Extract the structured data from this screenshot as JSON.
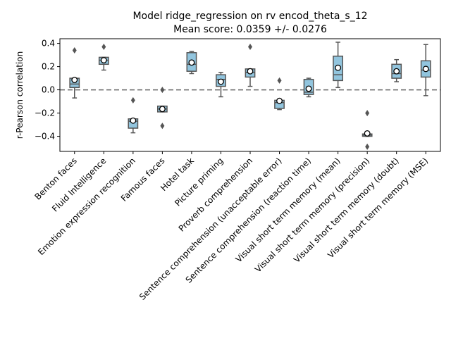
{
  "chart_data": {
    "type": "boxplot",
    "title": "Model ridge_regression on rv encod_theta_s_12",
    "subtitle": "Mean score: 0.0359 +/- 0.0276",
    "xlabel": "",
    "ylabel": "r-Pearson correlation",
    "ylim": [
      -0.53,
      0.44
    ],
    "yticks": [
      0.4,
      0.2,
      0.0,
      -0.2,
      -0.4
    ],
    "ytick_labels": [
      "0.4",
      "0.2",
      "0.0",
      "−0.2",
      "−0.4"
    ],
    "reference_line": 0.0,
    "grid": false,
    "colors": {
      "box_fill": "#92c5de",
      "box_edge": "#555555",
      "reference_line": "#666666"
    },
    "categories": [
      "Benton faces",
      "Fluid Intelligence",
      "Emotion expression recognition",
      "Famous faces",
      "Hotel task",
      "Picture priming",
      "Proverb comprehension",
      "Sentence comprehension (unacceptable error)",
      "Sentence comprehension (reaction time)",
      "Visual short term memory (mean)",
      "Visual short term memory (precision)",
      "Visual short term memory (doubt)",
      "Visual short term memory (MSE)"
    ],
    "boxes": [
      {
        "whislo": -0.07,
        "q1": 0.02,
        "med": 0.05,
        "q3": 0.1,
        "whishi": 0.1,
        "mean": 0.085,
        "fliers": [
          0.34
        ]
      },
      {
        "whislo": 0.17,
        "q1": 0.22,
        "med": 0.255,
        "q3": 0.28,
        "whishi": 0.28,
        "mean": 0.255,
        "fliers": [
          0.37
        ]
      },
      {
        "whislo": -0.37,
        "q1": -0.33,
        "med": -0.27,
        "q3": -0.25,
        "whishi": -0.25,
        "mean": -0.265,
        "fliers": [
          -0.09
        ]
      },
      {
        "whislo": -0.19,
        "q1": -0.19,
        "med": -0.165,
        "q3": -0.14,
        "whishi": -0.14,
        "mean": -0.165,
        "fliers": [
          0.0,
          -0.31
        ]
      },
      {
        "whislo": 0.14,
        "q1": 0.16,
        "med": 0.22,
        "q3": 0.32,
        "whishi": 0.33,
        "mean": 0.235,
        "fliers": []
      },
      {
        "whislo": -0.06,
        "q1": 0.03,
        "med": 0.09,
        "q3": 0.13,
        "whishi": 0.15,
        "mean": 0.07,
        "fliers": []
      },
      {
        "whislo": 0.03,
        "q1": 0.11,
        "med": 0.15,
        "q3": 0.18,
        "whishi": 0.18,
        "mean": 0.16,
        "fliers": [
          0.37
        ]
      },
      {
        "whislo": -0.17,
        "q1": -0.16,
        "med": -0.11,
        "q3": -0.09,
        "whishi": -0.08,
        "mean": -0.095,
        "fliers": [
          0.08
        ]
      },
      {
        "whislo": -0.06,
        "q1": -0.04,
        "med": -0.02,
        "q3": 0.09,
        "whishi": 0.1,
        "mean": 0.01,
        "fliers": []
      },
      {
        "whislo": 0.02,
        "q1": 0.08,
        "med": 0.13,
        "q3": 0.29,
        "whishi": 0.41,
        "mean": 0.19,
        "fliers": []
      },
      {
        "whislo": -0.4,
        "q1": -0.4,
        "med": -0.39,
        "q3": -0.38,
        "whishi": -0.38,
        "mean": -0.375,
        "fliers": [
          -0.2,
          -0.49
        ]
      },
      {
        "whislo": 0.07,
        "q1": 0.1,
        "med": 0.14,
        "q3": 0.22,
        "whishi": 0.26,
        "mean": 0.16,
        "fliers": []
      },
      {
        "whislo": -0.05,
        "q1": 0.11,
        "med": 0.17,
        "q3": 0.25,
        "whishi": 0.39,
        "mean": 0.18,
        "fliers": []
      }
    ]
  }
}
